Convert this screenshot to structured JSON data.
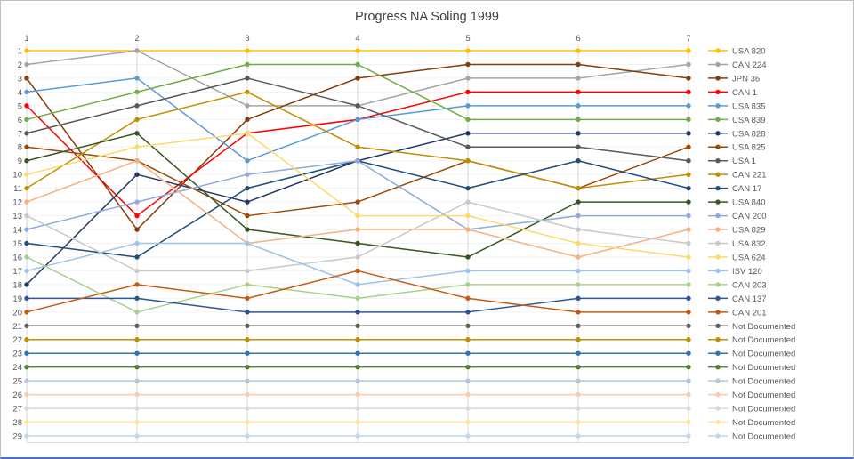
{
  "window": {
    "background": "#FFFFFF",
    "border_color": "#BFBFBF",
    "bottom_edge_color": "#4472C4"
  },
  "chart_data": {
    "type": "line",
    "title": "Progress NA Soling 1999",
    "title_color": "#404040",
    "axis_text_color": "#595959",
    "gridline_vertical_color": "#D9D9D9",
    "gridline_horizontal_color": "#F2F2F2",
    "x_axis_position": "top",
    "xlabel": "",
    "ylabel": "",
    "x_labels": [
      "1",
      "2",
      "3",
      "4",
      "5",
      "6",
      "7"
    ],
    "y_labels": [
      "1",
      "2",
      "3",
      "4",
      "5",
      "6",
      "7",
      "8",
      "9",
      "10",
      "11",
      "12",
      "13",
      "14",
      "15",
      "16",
      "17",
      "18",
      "19",
      "20",
      "21",
      "22",
      "23",
      "24",
      "25",
      "26",
      "27",
      "28",
      "29"
    ],
    "y_axis_inverted": true,
    "ylim": [
      1,
      29
    ],
    "grid": true,
    "legend_position": "right",
    "marker": "circle",
    "series": [
      {
        "name": "USA 820",
        "color": "#FFC000",
        "ranks": [
          1,
          1,
          1,
          1,
          1,
          1,
          1
        ]
      },
      {
        "name": "CAN 224",
        "color": "#A5A5A5",
        "ranks": [
          2,
          1,
          5,
          5,
          3,
          3,
          2
        ]
      },
      {
        "name": "JPN 36",
        "color": "#843C0C",
        "ranks": [
          3,
          14,
          6,
          3,
          2,
          2,
          3
        ]
      },
      {
        "name": "CAN 1",
        "color": "#FF0000",
        "ranks": [
          5,
          13,
          7,
          6,
          4,
          4,
          4
        ]
      },
      {
        "name": "USA 835",
        "color": "#5B9BD5",
        "ranks": [
          4,
          3,
          9,
          6,
          5,
          5,
          5
        ]
      },
      {
        "name": "USA 839",
        "color": "#70AD47",
        "ranks": [
          6,
          4,
          2,
          2,
          6,
          6,
          6
        ]
      },
      {
        "name": "USA 828",
        "color": "#203864",
        "ranks": [
          18,
          10,
          12,
          9,
          7,
          7,
          7
        ]
      },
      {
        "name": "USA 825",
        "color": "#9C4A06",
        "ranks": [
          8,
          9,
          13,
          12,
          9,
          11,
          8
        ]
      },
      {
        "name": "USA 1",
        "color": "#595959",
        "ranks": [
          7,
          5,
          3,
          5,
          8,
          8,
          9
        ]
      },
      {
        "name": "CAN 221",
        "color": "#BF8F00",
        "ranks": [
          11,
          6,
          4,
          8,
          9,
          11,
          10
        ]
      },
      {
        "name": "CAN 17",
        "color": "#1F4E79",
        "ranks": [
          15,
          16,
          11,
          9,
          11,
          9,
          11
        ]
      },
      {
        "name": "USA 840",
        "color": "#375623",
        "ranks": [
          9,
          7,
          14,
          15,
          16,
          12,
          12
        ]
      },
      {
        "name": "CAN 200",
        "color": "#8FAADC",
        "ranks": [
          14,
          12,
          10,
          9,
          14,
          13,
          13
        ]
      },
      {
        "name": "USA 829",
        "color": "#F4B183",
        "ranks": [
          12,
          9,
          15,
          14,
          14,
          16,
          14
        ]
      },
      {
        "name": "USA 832",
        "color": "#C9C9C9",
        "ranks": [
          13,
          17,
          17,
          16,
          12,
          14,
          15
        ]
      },
      {
        "name": "USA 624",
        "color": "#FFD966",
        "ranks": [
          10,
          8,
          7,
          13,
          13,
          15,
          16
        ]
      },
      {
        "name": "ISV  120",
        "color": "#9DC3E6",
        "ranks": [
          17,
          15,
          15,
          18,
          17,
          17,
          17
        ]
      },
      {
        "name": "CAN 203",
        "color": "#A9D18E",
        "ranks": [
          16,
          20,
          18,
          19,
          18,
          18,
          18
        ]
      },
      {
        "name": "CAN 137",
        "color": "#2F5597",
        "ranks": [
          19,
          19,
          20,
          20,
          20,
          19,
          19
        ]
      },
      {
        "name": "CAN 201",
        "color": "#C55A11",
        "ranks": [
          20,
          18,
          19,
          17,
          19,
          20,
          20
        ]
      },
      {
        "name": "Not Documented",
        "color": "#636363",
        "ranks": [
          21,
          21,
          21,
          21,
          21,
          21,
          21
        ]
      },
      {
        "name": "Not Documented",
        "color": "#BF9000",
        "ranks": [
          22,
          22,
          22,
          22,
          22,
          22,
          22
        ]
      },
      {
        "name": "Not Documented",
        "color": "#2E75B6",
        "ranks": [
          23,
          23,
          23,
          23,
          23,
          23,
          23
        ]
      },
      {
        "name": "Not Documented",
        "color": "#538135",
        "ranks": [
          24,
          24,
          24,
          24,
          24,
          24,
          24
        ]
      },
      {
        "name": "Not Documented",
        "color": "#B4C7E7",
        "ranks": [
          25,
          25,
          25,
          25,
          25,
          25,
          25
        ]
      },
      {
        "name": "Not Documented",
        "color": "#F8CBAD",
        "ranks": [
          26,
          26,
          26,
          26,
          26,
          26,
          26
        ]
      },
      {
        "name": "Not Documented",
        "color": "#D9D9D9",
        "ranks": [
          27,
          27,
          27,
          27,
          27,
          27,
          27
        ]
      },
      {
        "name": "Not Documented",
        "color": "#FFE699",
        "ranks": [
          28,
          28,
          28,
          28,
          28,
          28,
          28
        ]
      },
      {
        "name": "Not Documented",
        "color": "#BDD7EE",
        "ranks": [
          29,
          29,
          29,
          29,
          29,
          29,
          29
        ]
      }
    ]
  }
}
